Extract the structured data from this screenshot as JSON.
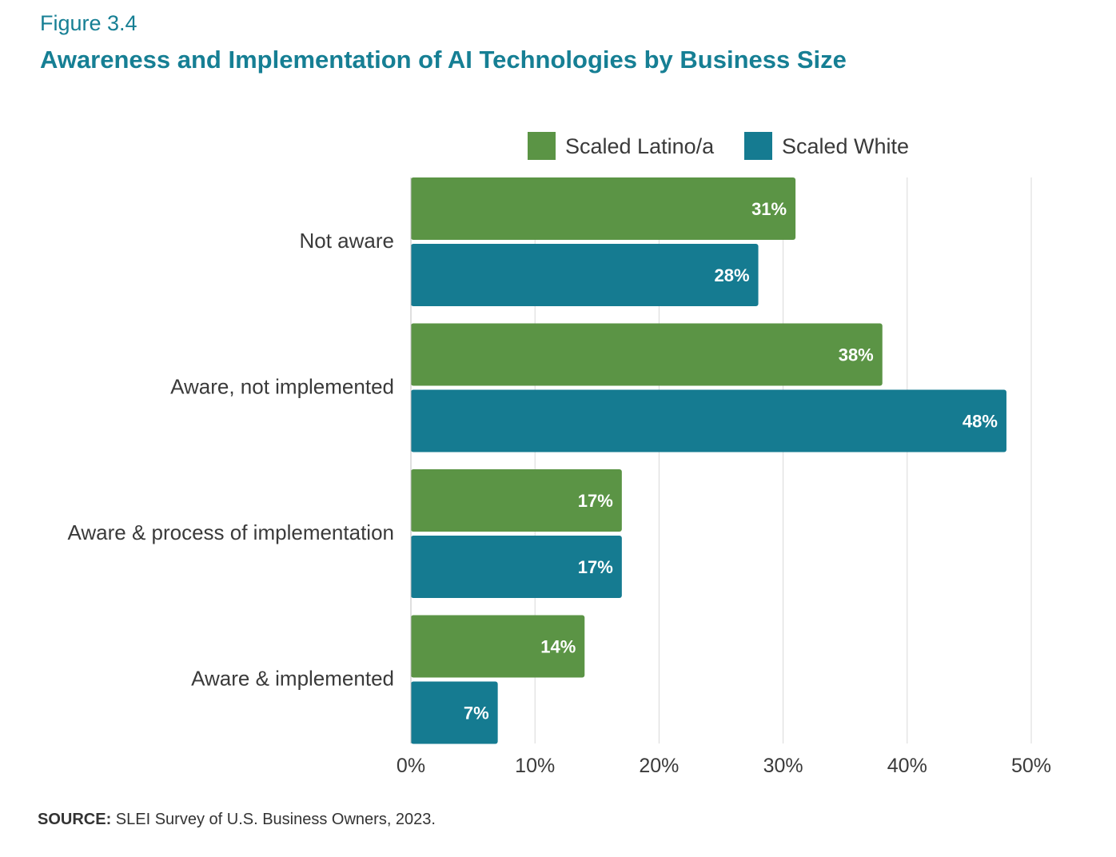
{
  "figure_label": "Figure 3.4",
  "title": "Awareness and Implementation of AI Technologies by Business Size",
  "source": {
    "label": "SOURCE:",
    "text": "SLEI Survey of U.S. Business Owners, 2023."
  },
  "colors": {
    "accent": "#167f94",
    "series_latino": "#5b9445",
    "series_white": "#157b91",
    "grid": "#d9d9d9",
    "text": "#3a3a3a"
  },
  "chart_data": {
    "type": "bar",
    "orientation": "horizontal",
    "categories": [
      "Not aware",
      "Aware, not implemented",
      "Aware & process of implementation",
      "Aware & implemented"
    ],
    "series": [
      {
        "name": "Scaled Latino/a",
        "values": [
          31,
          38,
          17,
          14
        ],
        "labels": [
          "31%",
          "38%",
          "17%",
          "14%"
        ]
      },
      {
        "name": "Scaled White",
        "values": [
          28,
          48,
          17,
          7
        ],
        "labels": [
          "28%",
          "48%",
          "17%",
          "7%"
        ]
      }
    ],
    "xlim": [
      0,
      50
    ],
    "xticks": [
      "0%",
      "10%",
      "20%",
      "30%",
      "40%",
      "50%"
    ],
    "grid": true,
    "legend_position": "top-right"
  }
}
